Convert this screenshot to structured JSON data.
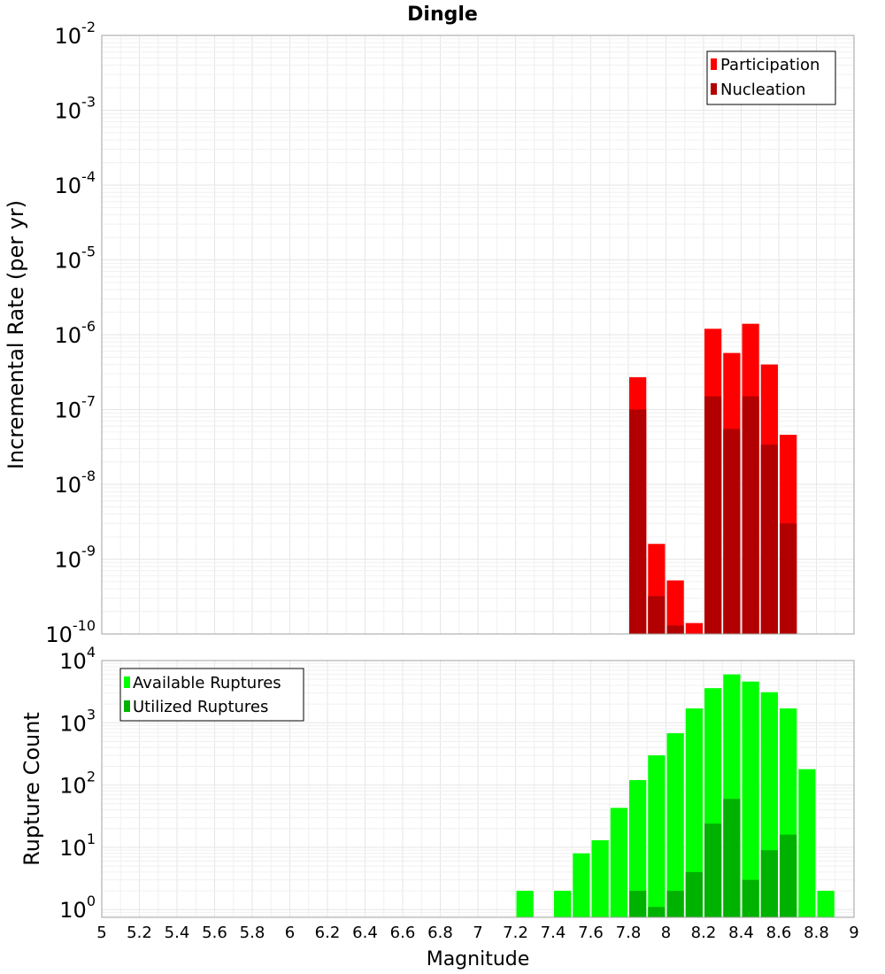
{
  "title": "Dingle",
  "xlabel": "Magnitude",
  "x_ticks": [
    "5",
    "5.2",
    "5.4",
    "5.6",
    "5.8",
    "6",
    "6.2",
    "6.4",
    "6.6",
    "6.8",
    "7",
    "7.2",
    "7.4",
    "7.6",
    "7.8",
    "8",
    "8.2",
    "8.4",
    "8.6",
    "8.8",
    "9"
  ],
  "colors": {
    "participation": "#ff0000",
    "nucleation": "#b20000",
    "available": "#00ff00",
    "utilized": "#00b200"
  },
  "chart_data": [
    {
      "type": "bar",
      "title": "Dingle",
      "xlabel": "Magnitude",
      "ylabel": "Incremental Rate (per yr)",
      "yscale": "log",
      "xlim": [
        5,
        9
      ],
      "ylim": [
        1e-10,
        0.01
      ],
      "y_ticks": [
        {
          "base": "10",
          "exp": "-2"
        },
        {
          "base": "10",
          "exp": "-3"
        },
        {
          "base": "10",
          "exp": "-4"
        },
        {
          "base": "10",
          "exp": "-5"
        },
        {
          "base": "10",
          "exp": "-6"
        },
        {
          "base": "10",
          "exp": "-7"
        },
        {
          "base": "10",
          "exp": "-8"
        },
        {
          "base": "10",
          "exp": "-9"
        },
        {
          "base": "10",
          "exp": "-10"
        }
      ],
      "legend": [
        "Participation",
        "Nucleation"
      ],
      "legend_position": "top-right",
      "series": [
        {
          "name": "Participation",
          "x": [
            7.85,
            7.95,
            8.05,
            8.15,
            8.25,
            8.35,
            8.45,
            8.55,
            8.65
          ],
          "values": [
            2.7e-07,
            1.6e-09,
            5.2e-10,
            1.4e-10,
            1.2e-06,
            5.7e-07,
            1.4e-06,
            4e-07,
            4.6e-08
          ]
        },
        {
          "name": "Nucleation",
          "x": [
            7.85,
            7.95,
            8.05,
            8.15,
            8.25,
            8.35,
            8.45,
            8.55,
            8.65
          ],
          "values": [
            1e-07,
            3.2e-10,
            1.3e-10,
            1e-10,
            1.5e-07,
            5.5e-08,
            1.5e-07,
            3.4e-08,
            3e-09
          ]
        }
      ]
    },
    {
      "type": "bar",
      "xlabel": "Magnitude",
      "ylabel": "Rupture Count",
      "yscale": "log",
      "xlim": [
        5,
        9
      ],
      "ylim": [
        0.75,
        10000
      ],
      "y_ticks": [
        {
          "base": "10",
          "exp": "4"
        },
        {
          "base": "10",
          "exp": "3"
        },
        {
          "base": "10",
          "exp": "2"
        },
        {
          "base": "10",
          "exp": "1"
        },
        {
          "base": "10",
          "exp": "0"
        }
      ],
      "legend": [
        "Available Ruptures",
        "Utilized Ruptures"
      ],
      "legend_position": "top-left",
      "series": [
        {
          "name": "Available Ruptures",
          "x": [
            7.25,
            7.45,
            7.55,
            7.65,
            7.75,
            7.85,
            7.95,
            8.05,
            8.15,
            8.25,
            8.35,
            8.45,
            8.55,
            8.65,
            8.75,
            8.85
          ],
          "values": [
            2,
            2,
            8,
            13,
            43,
            120,
            300,
            680,
            1700,
            3600,
            6000,
            4600,
            3100,
            1700,
            180,
            2
          ]
        },
        {
          "name": "Utilized Ruptures",
          "x": [
            7.85,
            7.95,
            8.05,
            8.15,
            8.25,
            8.35,
            8.45,
            8.55,
            8.65
          ],
          "values": [
            2,
            1.1,
            2,
            4,
            24,
            60,
            3,
            9,
            16
          ]
        }
      ]
    }
  ]
}
